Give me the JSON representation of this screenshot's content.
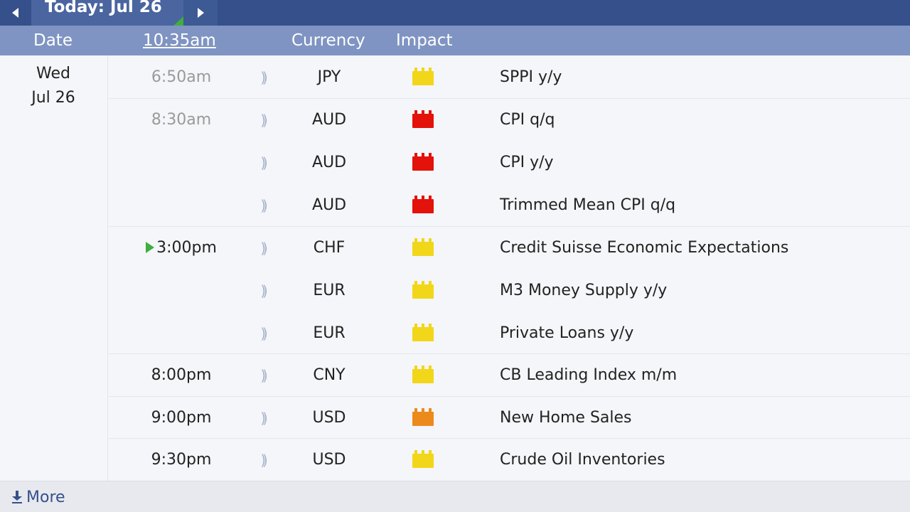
{
  "nav": {
    "today_label": "Today: Jul 26",
    "prev_icon": "triangle-left-icon",
    "next_icon": "triangle-right-icon"
  },
  "header": {
    "date": "Date",
    "current_time": "10:35am",
    "currency": "Currency",
    "impact": "Impact"
  },
  "day": {
    "weekday": "Wed",
    "date": "Jul 26"
  },
  "impact_colors": {
    "low": "#f2d61a",
    "medium": "#ec8a1c",
    "high": "#e3120b"
  },
  "events": [
    {
      "time": "6:50am",
      "currency": "JPY",
      "impact": "low",
      "event": "SPPI y/y"
    },
    {
      "time": "8:30am",
      "currency": "AUD",
      "impact": "high",
      "event": "CPI q/q"
    },
    {
      "time": "",
      "currency": "AUD",
      "impact": "high",
      "event": "CPI y/y"
    },
    {
      "time": "",
      "currency": "AUD",
      "impact": "high",
      "event": "Trimmed Mean CPI q/q"
    },
    {
      "time": "3:00pm",
      "currency": "CHF",
      "impact": "low",
      "event": "Credit Suisse Economic Expectations"
    },
    {
      "time": "",
      "currency": "EUR",
      "impact": "low",
      "event": "M3 Money Supply y/y"
    },
    {
      "time": "",
      "currency": "EUR",
      "impact": "low",
      "event": "Private Loans y/y"
    },
    {
      "time": "8:00pm",
      "currency": "CNY",
      "impact": "low",
      "event": "CB Leading Index m/m"
    },
    {
      "time": "9:00pm",
      "currency": "USD",
      "impact": "medium",
      "event": "New Home Sales"
    },
    {
      "time": "9:30pm",
      "currency": "USD",
      "impact": "low",
      "event": "Crude Oil Inventories"
    }
  ],
  "footer": {
    "more_label": "More",
    "more_icon": "download-arrow-icon"
  }
}
